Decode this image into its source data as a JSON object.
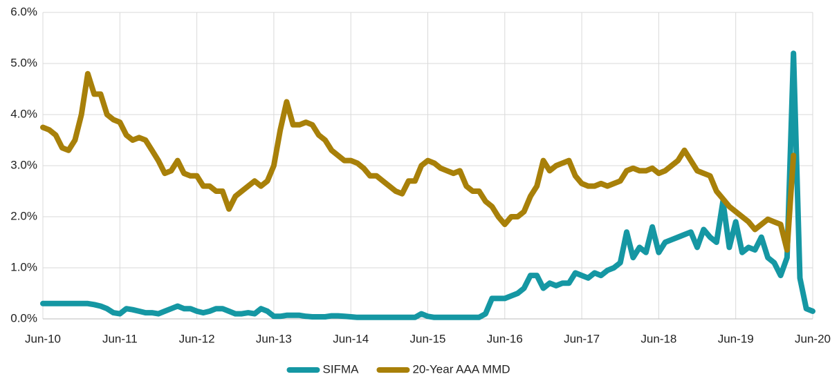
{
  "chart_data": {
    "type": "line",
    "x": [
      0,
      1,
      2,
      3,
      4,
      5,
      6,
      7,
      8,
      9,
      10,
      11,
      12,
      13,
      14,
      15,
      16,
      17,
      18,
      19,
      20,
      21,
      22,
      23,
      24,
      25,
      26,
      27,
      28,
      29,
      30,
      31,
      32,
      33,
      34,
      35,
      36,
      37,
      38,
      39,
      40,
      41,
      42,
      43,
      44,
      45,
      46,
      47,
      48,
      49,
      50,
      51,
      52,
      53,
      54,
      55,
      56,
      57,
      58,
      59,
      60,
      61,
      62,
      63,
      64,
      65,
      66,
      67,
      68,
      69,
      70,
      71,
      72,
      73,
      74,
      75,
      76,
      77,
      78,
      79,
      80,
      81,
      82,
      83,
      84,
      85,
      86,
      87,
      88,
      89,
      90,
      91,
      92,
      93,
      94,
      95,
      96,
      97,
      98,
      99,
      100,
      101,
      102,
      103,
      104,
      105,
      106,
      107,
      108,
      109,
      110,
      111,
      112,
      113,
      114,
      115,
      116,
      117,
      118,
      119,
      120
    ],
    "series": [
      {
        "name": "SIFMA",
        "color": "#1597a3",
        "values": [
          0.3,
          0.3,
          0.3,
          0.3,
          0.3,
          0.3,
          0.3,
          0.3,
          0.28,
          0.25,
          0.2,
          0.12,
          0.1,
          0.2,
          0.18,
          0.15,
          0.12,
          0.12,
          0.1,
          0.15,
          0.2,
          0.25,
          0.2,
          0.2,
          0.15,
          0.12,
          0.15,
          0.2,
          0.2,
          0.15,
          0.1,
          0.1,
          0.12,
          0.1,
          0.2,
          0.15,
          0.05,
          0.05,
          0.07,
          0.07,
          0.07,
          0.05,
          0.04,
          0.04,
          0.04,
          0.06,
          0.06,
          0.05,
          0.04,
          0.03,
          0.03,
          0.03,
          0.03,
          0.03,
          0.03,
          0.03,
          0.03,
          0.03,
          0.03,
          0.1,
          0.05,
          0.03,
          0.03,
          0.03,
          0.03,
          0.03,
          0.03,
          0.03,
          0.03,
          0.1,
          0.4,
          0.4,
          0.4,
          0.45,
          0.5,
          0.6,
          0.85,
          0.85,
          0.6,
          0.7,
          0.65,
          0.7,
          0.7,
          0.9,
          0.85,
          0.8,
          0.9,
          0.85,
          0.95,
          1.0,
          1.1,
          1.7,
          1.2,
          1.4,
          1.3,
          1.8,
          1.3,
          1.5,
          1.55,
          1.6,
          1.65,
          1.7,
          1.4,
          1.75,
          1.6,
          1.5,
          2.3,
          1.4,
          1.9,
          1.3,
          1.4,
          1.35,
          1.6,
          1.2,
          1.1,
          0.85,
          1.2,
          5.2,
          0.8,
          0.2,
          0.15
        ]
      },
      {
        "name": "20-Year AAA MMD",
        "color": "#a88009",
        "values": [
          3.75,
          3.7,
          3.6,
          3.35,
          3.3,
          3.5,
          4.0,
          4.8,
          4.4,
          4.4,
          4.0,
          3.9,
          3.85,
          3.6,
          3.5,
          3.55,
          3.5,
          3.3,
          3.1,
          2.85,
          2.9,
          3.1,
          2.85,
          2.8,
          2.8,
          2.6,
          2.6,
          2.5,
          2.5,
          2.15,
          2.4,
          2.5,
          2.6,
          2.7,
          2.6,
          2.7,
          3.0,
          3.7,
          4.25,
          3.8,
          3.8,
          3.85,
          3.8,
          3.6,
          3.5,
          3.3,
          3.2,
          3.1,
          3.1,
          3.05,
          2.95,
          2.8,
          2.8,
          2.7,
          2.6,
          2.5,
          2.45,
          2.7,
          2.7,
          3.0,
          3.1,
          3.05,
          2.95,
          2.9,
          2.85,
          2.9,
          2.6,
          2.5,
          2.5,
          2.3,
          2.2,
          2.0,
          1.85,
          2.0,
          2.0,
          2.1,
          2.4,
          2.6,
          3.1,
          2.9,
          3.0,
          3.05,
          3.1,
          2.8,
          2.65,
          2.6,
          2.6,
          2.65,
          2.6,
          2.65,
          2.7,
          2.9,
          2.95,
          2.9,
          2.9,
          2.95,
          2.85,
          2.9,
          3.0,
          3.1,
          3.3,
          3.1,
          2.9,
          2.85,
          2.8,
          2.5,
          2.35,
          2.2,
          2.1,
          2.0,
          1.9,
          1.75,
          1.85,
          1.95,
          1.9,
          1.85,
          1.35,
          3.2,
          null,
          null,
          null
        ]
      }
    ],
    "xlim": [
      0,
      120
    ],
    "xticks": [
      {
        "value": 0,
        "label": "Jun-10"
      },
      {
        "value": 12,
        "label": "Jun-11"
      },
      {
        "value": 24,
        "label": "Jun-12"
      },
      {
        "value": 36,
        "label": "Jun-13"
      },
      {
        "value": 48,
        "label": "Jun-14"
      },
      {
        "value": 60,
        "label": "Jun-15"
      },
      {
        "value": 72,
        "label": "Jun-16"
      },
      {
        "value": 84,
        "label": "Jun-17"
      },
      {
        "value": 96,
        "label": "Jun-18"
      },
      {
        "value": 108,
        "label": "Jun-19"
      },
      {
        "value": 120,
        "label": "Jun-20"
      }
    ],
    "ylim": [
      0,
      6
    ],
    "yticks": [
      {
        "value": 0,
        "label": "0.0%"
      },
      {
        "value": 1,
        "label": "1.0%"
      },
      {
        "value": 2,
        "label": "2.0%"
      },
      {
        "value": 3,
        "label": "3.0%"
      },
      {
        "value": 4,
        "label": "4.0%"
      },
      {
        "value": 5,
        "label": "5.0%"
      },
      {
        "value": 6,
        "label": "6.0%"
      }
    ],
    "grid": true,
    "legend": "bottom"
  }
}
